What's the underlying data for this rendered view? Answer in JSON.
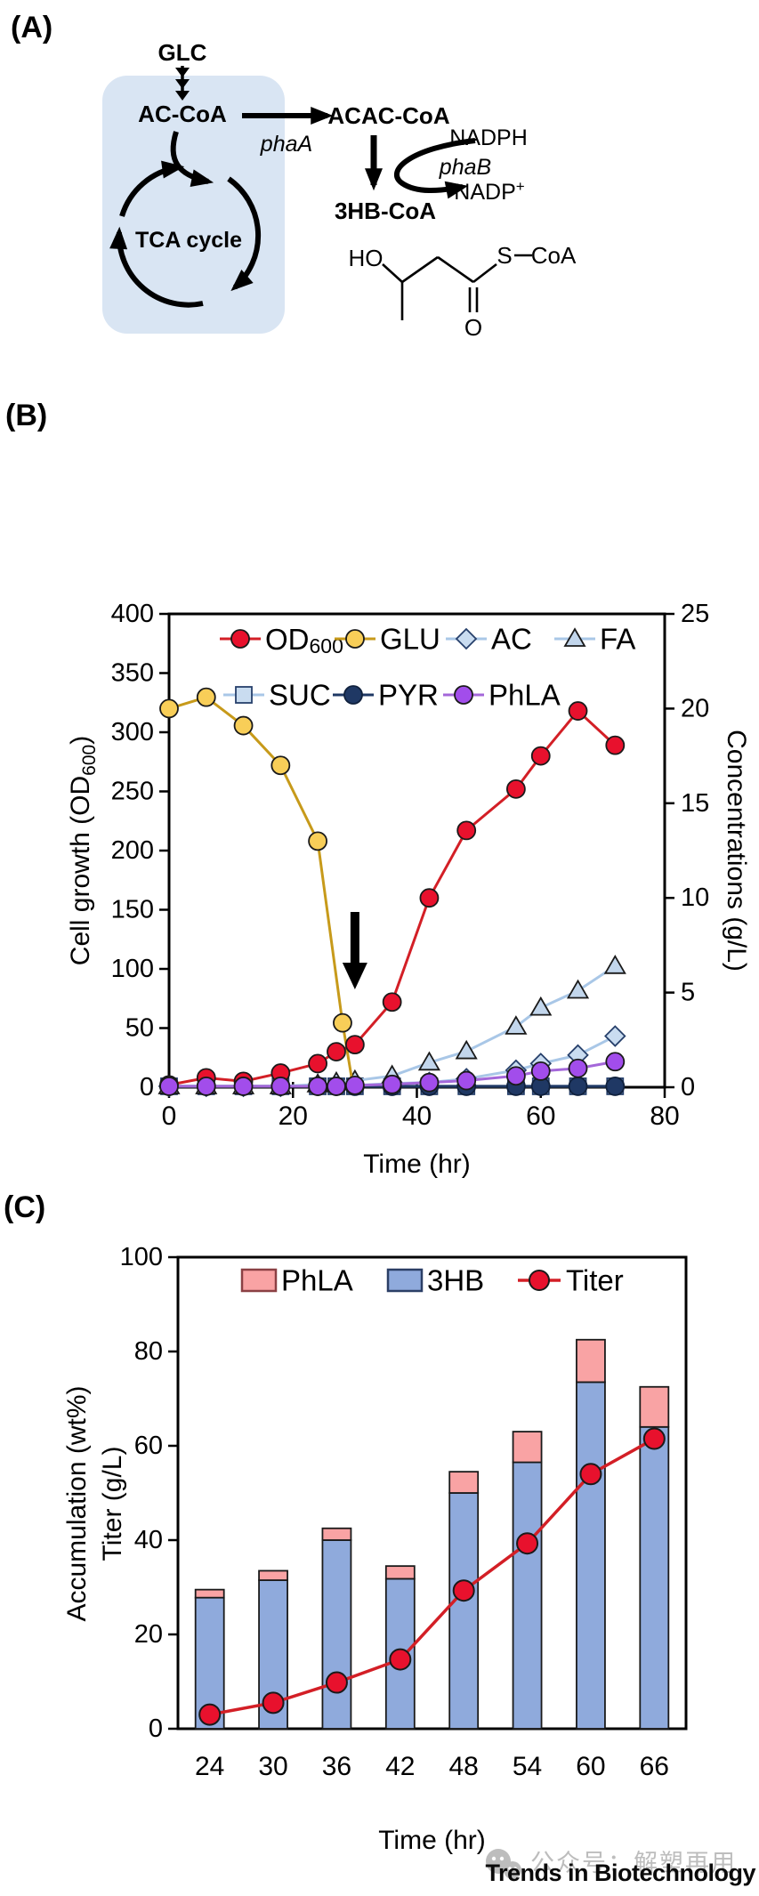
{
  "figure": {
    "panel_a_label": "(A)",
    "panel_b_label": "(B)",
    "panel_c_label": "(C)"
  },
  "pathway": {
    "glc": "GLC",
    "ac_coa": "AC-CoA",
    "pha_a": "phaA",
    "acac_coa": "ACAC-CoA",
    "nadph": "NADPH",
    "pha_b": "phaB",
    "nadp": "NADP",
    "nadp_sup": "+",
    "hb_coa": "3HB-CoA",
    "tca": "TCA cycle",
    "ho": "HO",
    "s": "S",
    "coa": "CoA",
    "o": "O"
  },
  "chart_data": [
    {
      "panel": "B",
      "type": "line",
      "xlabel": "Time (hr)",
      "ylabel_left": {
        "pre": "Cell growth (OD",
        "sub": "600",
        "post": ")"
      },
      "ylabel_right": "Concentrations (g/L)",
      "xlim": [
        0,
        80
      ],
      "xticks": [
        0,
        20,
        40,
        60,
        80
      ],
      "ylim_left": [
        0,
        400
      ],
      "yticks_left": [
        0,
        50,
        100,
        150,
        200,
        250,
        300,
        350,
        400
      ],
      "ylim_right": [
        0,
        25
      ],
      "yticks_right": [
        0,
        5,
        10,
        15,
        20,
        25
      ],
      "grid": false,
      "legend_position": "top-inside",
      "annotation": {
        "type": "down-arrow",
        "x": 30
      },
      "legend_rows": [
        [
          "OD600",
          "GLU",
          "AC",
          "FA"
        ],
        [
          "SUC",
          "PYR",
          "PhLA"
        ]
      ],
      "series": [
        {
          "name": "SUC",
          "axis": "right",
          "marker": "square",
          "fill": "#C9DCF0",
          "stroke": "#27406B",
          "line": "#A9C7E7",
          "x": [
            0,
            6,
            12,
            18,
            24,
            27,
            30,
            36,
            42,
            48,
            56,
            60,
            66,
            72
          ],
          "y": [
            0.05,
            0.05,
            0.05,
            0.05,
            0.05,
            0.05,
            0.05,
            0.05,
            0.05,
            0.05,
            0.05,
            0.05,
            0.05,
            0.05
          ]
        },
        {
          "name": "PYR",
          "axis": "right",
          "marker": "circle",
          "fill": "#1F3864",
          "stroke": "#10213D",
          "line": "#1F3864",
          "x": [
            0,
            6,
            12,
            18,
            24,
            27,
            30,
            36,
            42,
            48,
            56,
            60,
            66,
            72
          ],
          "y": [
            0.05,
            0.05,
            0.05,
            0.05,
            0.05,
            0.05,
            0.05,
            0.05,
            0.05,
            0.05,
            0.05,
            0.05,
            0.05,
            0.05
          ]
        },
        {
          "name": "AC",
          "axis": "right",
          "marker": "diamond",
          "fill": "#C9DCF0",
          "stroke": "#27406B",
          "line": "#A9C7E7",
          "x": [
            0,
            6,
            12,
            18,
            24,
            27,
            30,
            36,
            42,
            48,
            56,
            60,
            66,
            72
          ],
          "y": [
            0.05,
            0.05,
            0.05,
            0.05,
            0.1,
            0.1,
            0.1,
            0.2,
            0.25,
            0.45,
            0.9,
            1.25,
            1.7,
            2.7
          ]
        },
        {
          "name": "FA",
          "axis": "right",
          "marker": "triangle",
          "fill": "#C2D6EC",
          "stroke": "#1A1A1A",
          "line": "#A9C7E7",
          "x": [
            0,
            6,
            12,
            18,
            24,
            27,
            30,
            36,
            42,
            48,
            56,
            60,
            66,
            72
          ],
          "y": [
            0.05,
            0.05,
            0.05,
            0.05,
            0.15,
            0.25,
            0.35,
            0.6,
            1.3,
            1.9,
            3.2,
            4.2,
            5.1,
            6.4
          ]
        },
        {
          "name": "GLU",
          "axis": "right",
          "marker": "circle",
          "fill": "#F8CE58",
          "stroke": "#1A1A1A",
          "line": "#C79A1A",
          "marker_skip_last": true,
          "x": [
            0,
            6,
            12,
            18,
            24,
            28,
            29.7
          ],
          "y": [
            20,
            20.6,
            19.1,
            17,
            13,
            3.4,
            0.05
          ]
        },
        {
          "name": "OD600",
          "axis": "left",
          "marker": "circle",
          "fill": "#E8112D",
          "stroke": "#1A1A1A",
          "line": "#D31F26",
          "x": [
            0,
            6,
            12,
            18,
            24,
            27,
            30,
            36,
            42,
            48,
            56,
            60,
            66,
            72
          ],
          "y": [
            2,
            8,
            5,
            12,
            20,
            30,
            36,
            72,
            160,
            217,
            252,
            280,
            318,
            289
          ]
        },
        {
          "name": "PhLA",
          "axis": "right",
          "marker": "circle",
          "fill": "#A24DEB",
          "stroke": "#1A1A1A",
          "line": "#A467D9",
          "x": [
            0,
            6,
            12,
            18,
            24,
            27,
            30,
            36,
            42,
            48,
            56,
            60,
            66,
            72
          ],
          "y": [
            0.05,
            0.05,
            0.05,
            0.05,
            0.05,
            0.05,
            0.1,
            0.15,
            0.25,
            0.35,
            0.6,
            0.85,
            1.0,
            1.35
          ]
        }
      ]
    },
    {
      "panel": "C",
      "type": "stacked-bar+line",
      "xlabel": "Time (hr)",
      "ylabel_line1": "Accumulation (wt%)",
      "ylabel_line2": "Titer (g/L)",
      "ylim": [
        0,
        100
      ],
      "yticks": [
        0,
        20,
        40,
        60,
        80,
        100
      ],
      "categories": [
        "24",
        "30",
        "36",
        "42",
        "48",
        "54",
        "60",
        "66"
      ],
      "series": [
        {
          "name": "3HB",
          "type": "bar",
          "fill": "#8FAADC",
          "stroke": "#1A1A1A",
          "values": [
            27.8,
            31.5,
            40,
            31.8,
            50,
            56.5,
            73.5,
            64
          ]
        },
        {
          "name": "PhLA",
          "type": "bar",
          "fill": "#F9A3A4",
          "stroke": "#1A1A1A",
          "values": [
            1.7,
            2.0,
            2.5,
            2.7,
            4.5,
            6.5,
            9.0,
            8.5
          ]
        },
        {
          "name": "Titer",
          "type": "line",
          "fill": "#E8112D",
          "stroke": "#1A1A1A",
          "line": "#D31F26",
          "values": [
            3,
            5.5,
            9.8,
            14.7,
            29.3,
            39.3,
            54,
            61.5
          ]
        }
      ],
      "legend": [
        {
          "name": "PhLA",
          "swatch": "#F9A3A4",
          "swatch_border": "#8B4044"
        },
        {
          "name": "3HB",
          "swatch": "#8FAADC",
          "swatch_border": "#2B3F66"
        },
        {
          "name": "Titer",
          "marker_fill": "#E8112D",
          "line": "#D31F26"
        }
      ]
    }
  ],
  "colors": {
    "pathway_box": "#D9E5F3",
    "arrow_black": "#000000"
  },
  "footer": {
    "journal": "Trends in Biotechnology",
    "watermark": "公众号：解塑再用",
    "watermark_icon": "wechat-icon"
  }
}
